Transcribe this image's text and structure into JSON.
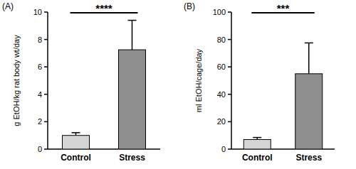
{
  "chart_data": [
    {
      "type": "bar",
      "title": "(A)",
      "ylabel": "g EtOH/kg rat body wt/day",
      "categories": [
        "Control",
        "Stress"
      ],
      "values": [
        1.0,
        7.25
      ],
      "errors": [
        0.2,
        2.15
      ],
      "colors": [
        "#d4d4d4",
        "#8e8e8e"
      ],
      "annotation": "****",
      "ylim": [
        0,
        10
      ],
      "yticks": [
        0,
        2,
        4,
        6,
        8,
        10
      ]
    },
    {
      "type": "bar",
      "title": "(B)",
      "ylabel": "ml EtOH/cage/day",
      "categories": [
        "Control",
        "Stress"
      ],
      "values": [
        7,
        55
      ],
      "errors": [
        1.5,
        22.5
      ],
      "colors": [
        "#d4d4d4",
        "#8e8e8e"
      ],
      "annotation": "***",
      "ylim": [
        0,
        100
      ],
      "yticks": [
        0,
        20,
        40,
        60,
        80,
        100
      ]
    }
  ]
}
